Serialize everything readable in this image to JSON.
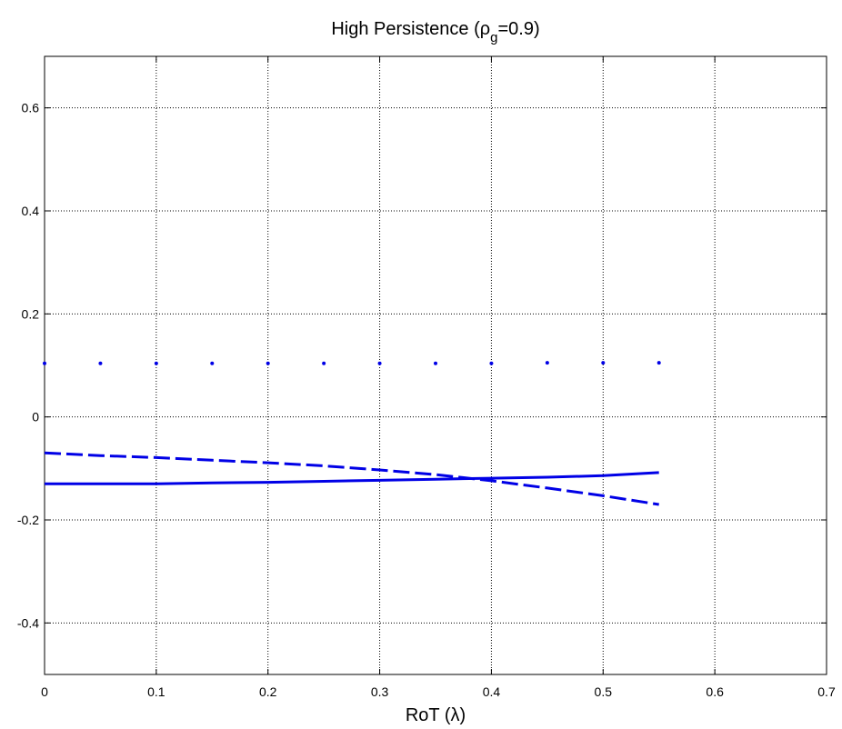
{
  "chart_data": {
    "type": "line",
    "title": {
      "main": "High Persistence (ρ",
      "sub": "g",
      "tail": "=0.9)"
    },
    "xlabel": "RoT (λ)",
    "ylabel": "",
    "xlim": [
      0,
      0.7
    ],
    "ylim": [
      -0.5,
      0.7
    ],
    "xticks": [
      0,
      0.1,
      0.2,
      0.3,
      0.4,
      0.5,
      0.6,
      0.7
    ],
    "xtick_labels": [
      "0",
      "0.1",
      "0.2",
      "0.3",
      "0.4",
      "0.5",
      "0.6",
      "0.7"
    ],
    "yticks": [
      -0.4,
      -0.2,
      0,
      0.2,
      0.4,
      0.6
    ],
    "ytick_labels": [
      "-0.4",
      "-0.2",
      "0",
      "0.2",
      "0.4",
      "0.6"
    ],
    "grid": true,
    "legend": null,
    "x": [
      0,
      0.05,
      0.1,
      0.15,
      0.2,
      0.25,
      0.3,
      0.35,
      0.4,
      0.45,
      0.5,
      0.55
    ],
    "series": [
      {
        "style": "dotted",
        "color": "#0000e6",
        "values": [
          0.104,
          0.104,
          0.104,
          0.104,
          0.104,
          0.104,
          0.104,
          0.104,
          0.104,
          0.105,
          0.105,
          0.105
        ]
      },
      {
        "style": "solid",
        "color": "#0000e6",
        "values": [
          -0.13,
          -0.13,
          -0.13,
          -0.128,
          -0.127,
          -0.125,
          -0.123,
          -0.121,
          -0.119,
          -0.117,
          -0.114,
          -0.108
        ]
      },
      {
        "style": "dashed",
        "color": "#0000e6",
        "values": [
          -0.07,
          -0.075,
          -0.079,
          -0.084,
          -0.089,
          -0.095,
          -0.103,
          -0.112,
          -0.124,
          -0.138,
          -0.153,
          -0.17
        ]
      }
    ]
  }
}
